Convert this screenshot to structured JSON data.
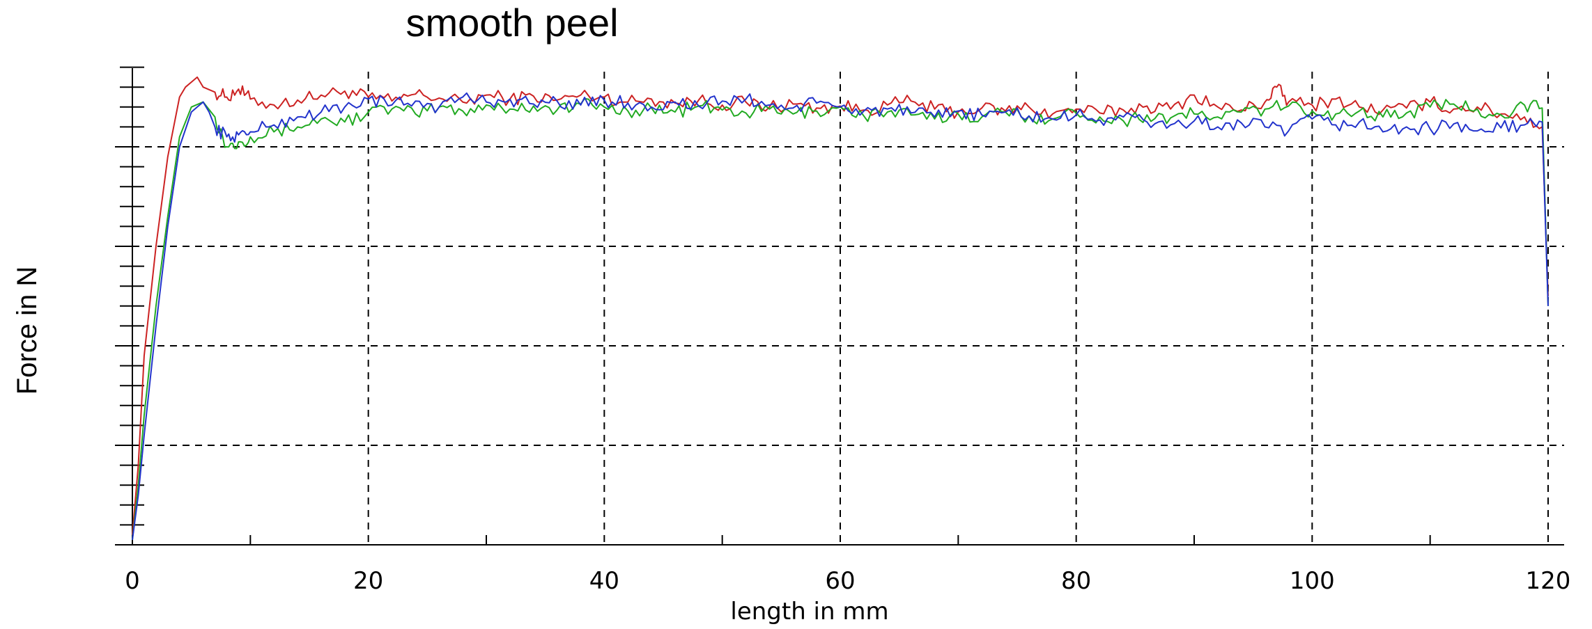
{
  "chart_data": {
    "type": "line",
    "title": "smooth peel",
    "xlabel": "length in mm",
    "ylabel": "Force in N",
    "xlim": [
      0,
      120
    ],
    "ylim": [
      0,
      5
    ],
    "x_ticks": [
      "0",
      "20",
      "40",
      "60",
      "80",
      "100",
      "120"
    ],
    "y_tick_labels_shown": false,
    "grid": true,
    "grid_style": "dashed",
    "legend": "none",
    "series": [
      {
        "color": "#cc2222",
        "x": [
          0,
          0.5,
          1,
          2,
          3,
          4,
          4.5,
          5,
          5.5,
          6,
          7,
          8,
          9,
          10,
          12,
          14,
          16,
          18,
          20,
          22,
          24,
          26,
          28,
          30,
          32,
          34,
          36,
          38,
          40,
          42,
          44,
          46,
          48,
          50,
          52,
          54,
          56,
          58,
          60,
          62,
          64,
          66,
          68,
          70,
          72,
          74,
          76,
          78,
          80,
          82,
          84,
          86,
          88,
          90,
          92,
          94,
          96,
          97,
          98,
          100,
          102,
          104,
          106,
          108,
          110,
          112,
          114,
          116,
          118,
          119.5,
          120
        ],
        "y": [
          0.1,
          0.8,
          1.9,
          3.0,
          3.9,
          4.5,
          4.6,
          4.65,
          4.7,
          4.6,
          4.55,
          4.5,
          4.58,
          4.48,
          4.42,
          4.47,
          4.52,
          4.56,
          4.5,
          4.46,
          4.53,
          4.49,
          4.45,
          4.52,
          4.48,
          4.51,
          4.47,
          4.52,
          4.5,
          4.45,
          4.48,
          4.44,
          4.47,
          4.42,
          4.45,
          4.4,
          4.43,
          4.39,
          4.41,
          4.37,
          4.42,
          4.46,
          4.38,
          4.35,
          4.39,
          4.36,
          4.4,
          4.33,
          4.38,
          4.34,
          4.37,
          4.41,
          4.38,
          4.52,
          4.4,
          4.37,
          4.45,
          4.6,
          4.45,
          4.42,
          4.48,
          4.4,
          4.37,
          4.39,
          4.45,
          4.38,
          4.4,
          4.33,
          4.3,
          4.2,
          2.5
        ]
      },
      {
        "color": "#22aa22",
        "x": [
          0,
          0.5,
          1,
          2,
          3,
          4,
          5,
          6,
          7,
          8,
          9,
          10,
          12,
          14,
          16,
          18,
          20,
          22,
          24,
          26,
          28,
          30,
          32,
          34,
          36,
          38,
          40,
          42,
          44,
          46,
          48,
          50,
          52,
          54,
          56,
          58,
          60,
          62,
          64,
          66,
          68,
          70,
          72,
          74,
          76,
          78,
          80,
          82,
          84,
          86,
          88,
          90,
          92,
          94,
          96,
          98,
          100,
          102,
          104,
          106,
          108,
          110,
          112,
          114,
          116,
          118,
          119.5,
          120
        ],
        "y": [
          0.05,
          0.6,
          1.3,
          2.4,
          3.3,
          4.1,
          4.4,
          4.45,
          4.3,
          4.0,
          4.05,
          4.1,
          4.15,
          4.2,
          4.28,
          4.25,
          4.35,
          4.38,
          4.33,
          4.4,
          4.36,
          4.42,
          4.38,
          4.41,
          4.37,
          4.43,
          4.4,
          4.36,
          4.39,
          4.35,
          4.41,
          4.37,
          4.34,
          4.38,
          4.33,
          4.36,
          4.4,
          4.31,
          4.35,
          4.32,
          4.28,
          4.33,
          4.3,
          4.35,
          4.31,
          4.28,
          4.34,
          4.3,
          4.26,
          4.32,
          4.29,
          4.33,
          4.3,
          4.35,
          4.38,
          4.41,
          4.36,
          4.33,
          4.36,
          4.3,
          4.34,
          4.4,
          4.43,
          4.38,
          4.32,
          4.42,
          4.39,
          2.4
        ]
      },
      {
        "color": "#2233cc",
        "x": [
          0,
          0.5,
          1,
          2,
          3,
          4,
          5,
          5.5,
          6,
          6.5,
          7,
          8,
          9,
          10,
          12,
          14,
          16,
          18,
          20,
          22,
          24,
          26,
          28,
          30,
          32,
          34,
          36,
          38,
          40,
          42,
          44,
          46,
          48,
          50,
          52,
          54,
          56,
          58,
          60,
          62,
          64,
          66,
          68,
          70,
          72,
          74,
          76,
          78,
          80,
          82,
          84,
          86,
          88,
          90,
          92,
          94,
          96,
          98,
          100,
          102,
          104,
          106,
          108,
          110,
          112,
          114,
          116,
          118,
          119.5,
          120
        ],
        "y": [
          0.05,
          0.5,
          1.1,
          2.2,
          3.2,
          4.0,
          4.35,
          4.4,
          4.45,
          4.35,
          4.2,
          4.1,
          4.12,
          4.15,
          4.22,
          4.3,
          4.35,
          4.4,
          4.48,
          4.42,
          4.46,
          4.4,
          4.5,
          4.45,
          4.48,
          4.43,
          4.46,
          4.42,
          4.47,
          4.44,
          4.4,
          4.45,
          4.41,
          4.46,
          4.48,
          4.42,
          4.39,
          4.44,
          4.4,
          4.36,
          4.38,
          4.34,
          4.3,
          4.36,
          4.32,
          4.35,
          4.31,
          4.28,
          4.32,
          4.27,
          4.3,
          4.25,
          4.22,
          4.26,
          4.2,
          4.24,
          4.2,
          4.16,
          4.28,
          4.22,
          4.25,
          4.15,
          4.2,
          4.18,
          4.23,
          4.16,
          4.19,
          4.22,
          4.25,
          2.4
        ]
      }
    ]
  }
}
